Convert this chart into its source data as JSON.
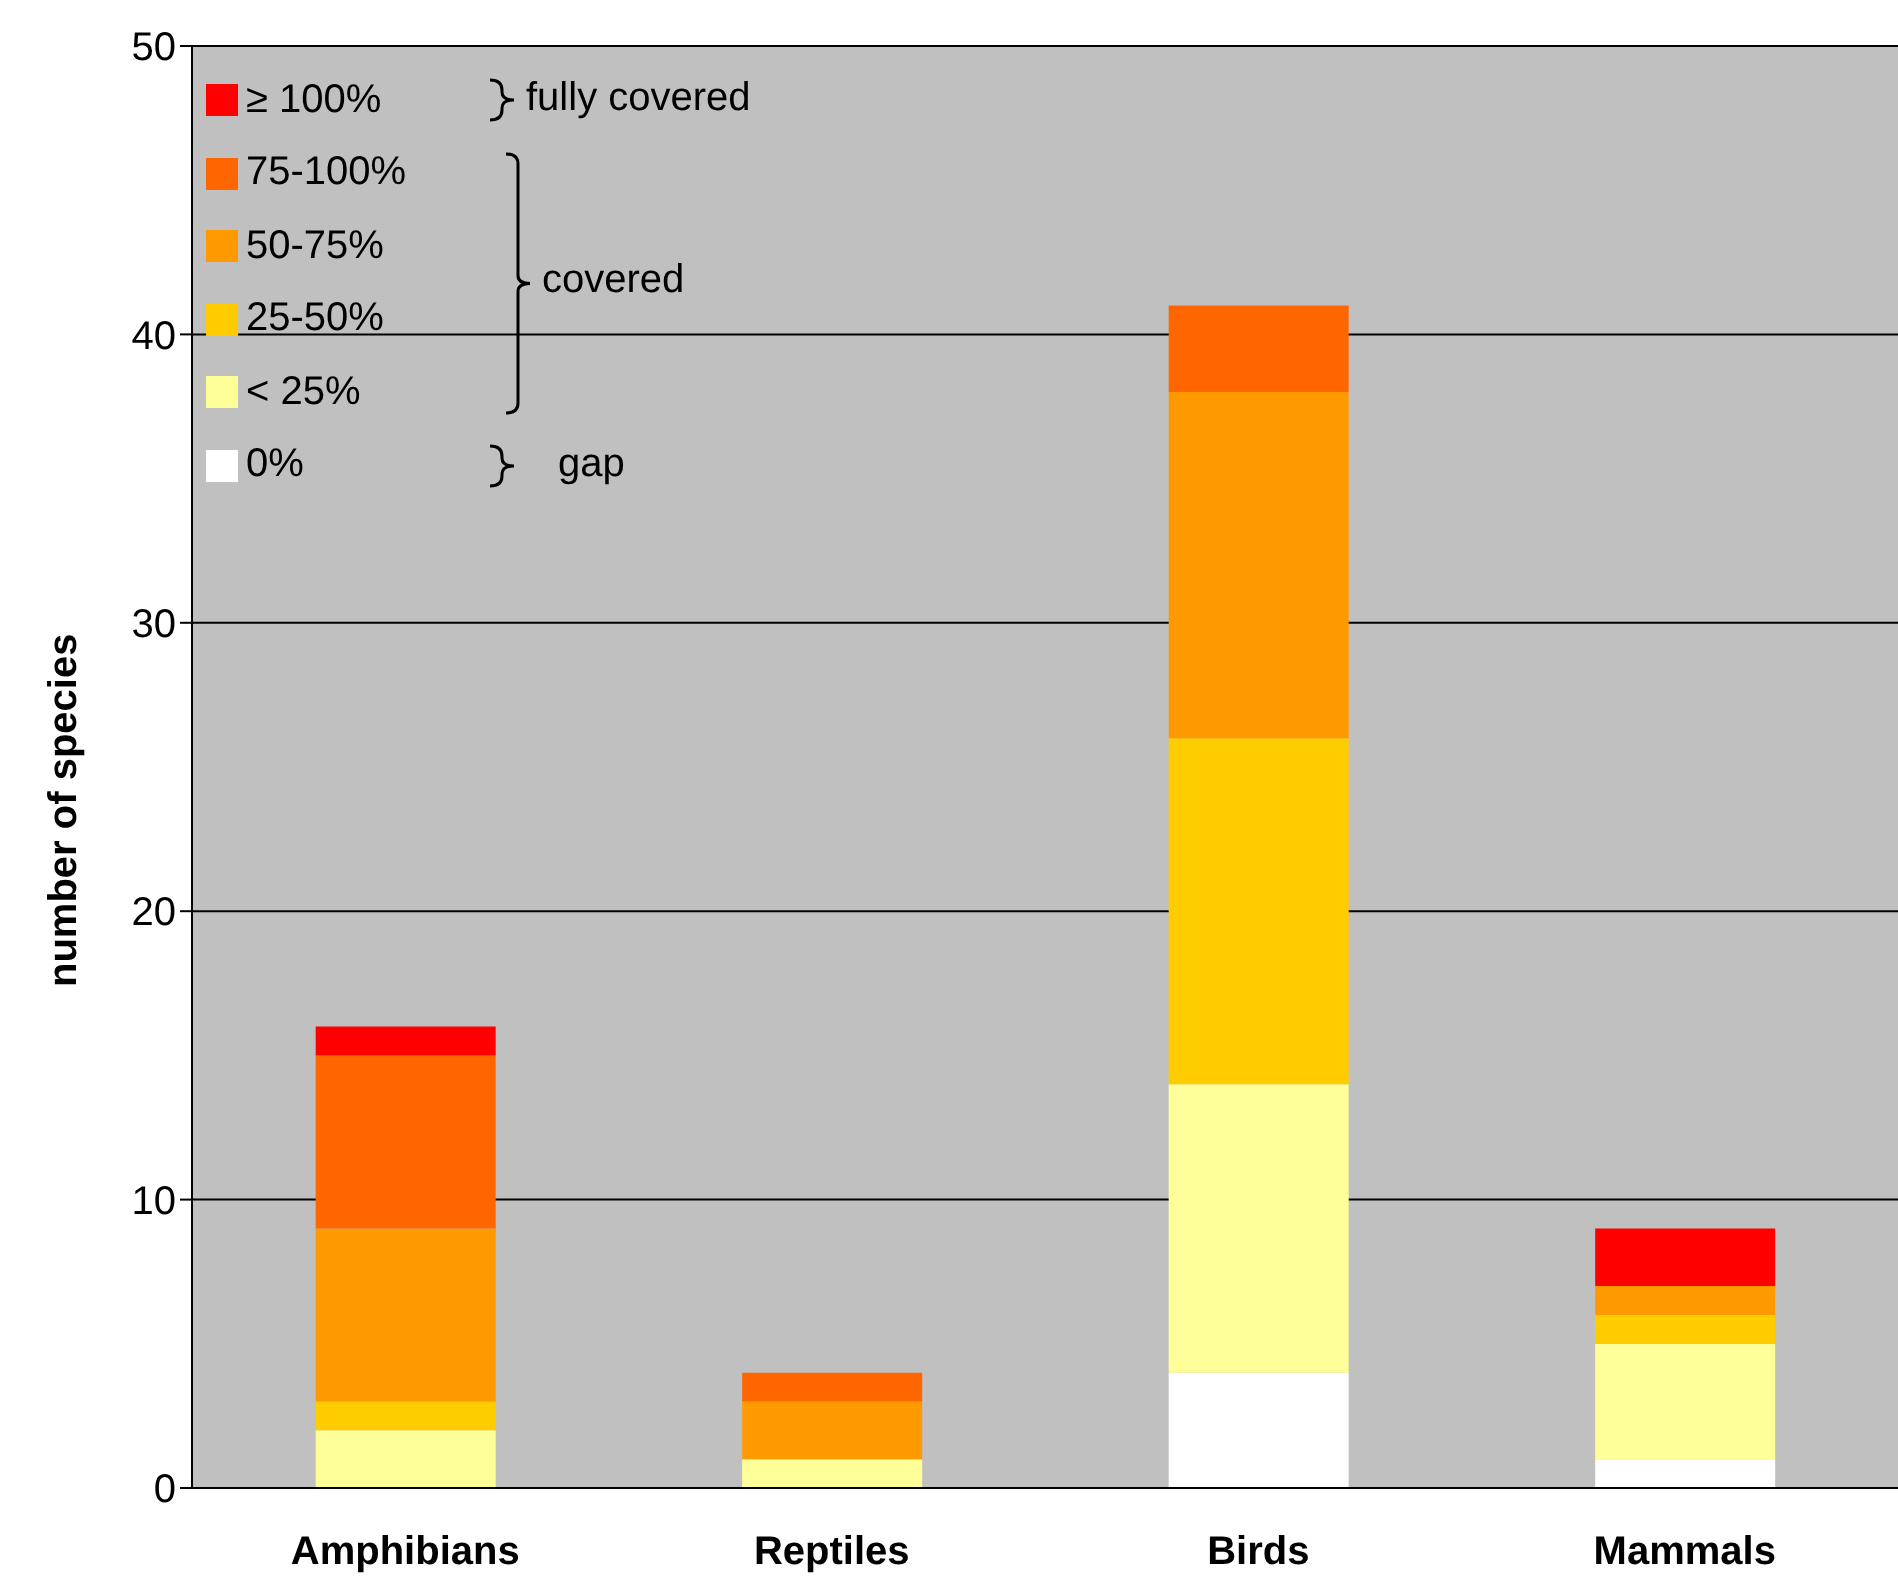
{
  "chart_data": {
    "type": "bar",
    "stacked": true,
    "ylabel": "number of species",
    "categories": [
      "Amphibians",
      "Reptiles",
      "Birds",
      "Mammals"
    ],
    "series": [
      {
        "name": "0%",
        "color": "#ffffff",
        "values": [
          0,
          0,
          4,
          1
        ]
      },
      {
        "name": "< 25%",
        "color": "#ffff99",
        "values": [
          2,
          1,
          10,
          4
        ]
      },
      {
        "name": "25-50%",
        "color": "#ffcc00",
        "values": [
          1,
          0,
          12,
          1
        ]
      },
      {
        "name": "50-75%",
        "color": "#ff9900",
        "values": [
          6,
          2,
          12,
          1
        ]
      },
      {
        "name": "75-100%",
        "color": "#ff6600",
        "values": [
          6,
          1,
          3,
          0
        ]
      },
      {
        "name": "≥ 100%",
        "color": "#ff0000",
        "values": [
          1,
          0,
          0,
          2
        ]
      }
    ],
    "ylim": [
      0,
      50
    ],
    "yticks": [
      0,
      10,
      20,
      30,
      40,
      50
    ],
    "grid": "y",
    "legend": "top left",
    "annotations": [
      "fully covered",
      "covered",
      "gap"
    ]
  }
}
